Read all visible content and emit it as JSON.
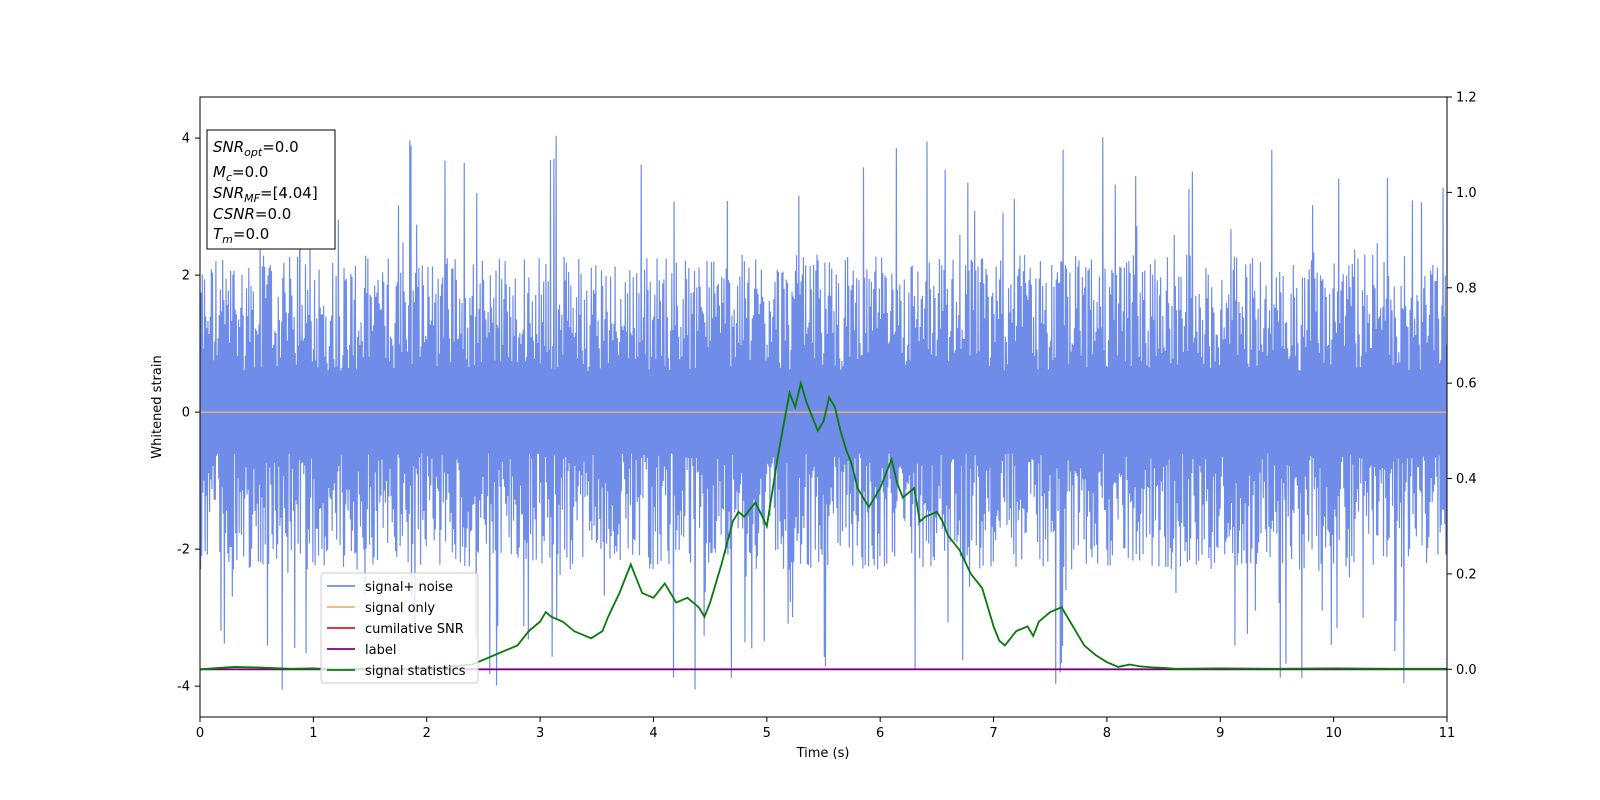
{
  "chart_data": {
    "type": "line",
    "xlabel": "Time (s)",
    "ylabel": "Whitened strain",
    "xlim": [
      0,
      11
    ],
    "ylim": [
      -4.45,
      4.6
    ],
    "y2lim": [
      -0.1,
      1.2
    ],
    "x_ticks": [
      0,
      1,
      2,
      3,
      4,
      5,
      6,
      7,
      8,
      9,
      10,
      11
    ],
    "y_ticks": [
      -4,
      -2,
      0,
      2,
      4
    ],
    "y2_ticks": [
      "0.0",
      "0.2",
      "0.4",
      "0.6",
      "0.8",
      "1.0",
      "1.2"
    ],
    "grid": false,
    "legend_position": "lower-left",
    "legend": [
      "signal+ noise",
      "signal only",
      "cumilative SNR",
      "label",
      "signal statistics"
    ],
    "colors": {
      "signal_noise": "#6f8de8",
      "signal_only": "#f5b36b",
      "cumulative_snr": "#e41a1c",
      "label": "#800080",
      "signal_statistics": "#0a7a0a"
    },
    "annotation": {
      "lines": [
        {
          "base": "SNR",
          "sub": "opt",
          "value": "=0.0"
        },
        {
          "base": "M",
          "sub": "c",
          "value": "=0.0"
        },
        {
          "base": "SNR",
          "sub": "MF",
          "value": "=[4.04]"
        },
        {
          "base": "CSNR",
          "sub": "",
          "value": "=0.0"
        },
        {
          "base": "T",
          "sub": "m",
          "value": "=0.0"
        }
      ]
    },
    "series": [
      {
        "name": "signal+ noise",
        "axis": "left",
        "noise_envelope": {
          "typical_max": 2.0,
          "typical_min": -2.0,
          "peak_max": 4.15,
          "peak_min": -4.05,
          "samples": 2200
        }
      },
      {
        "name": "signal only",
        "axis": "left",
        "x": [
          0,
          11
        ],
        "y": [
          0,
          0
        ]
      },
      {
        "name": "label",
        "axis": "right",
        "x": [
          0,
          11
        ],
        "y": [
          0,
          0
        ]
      },
      {
        "name": "signal statistics",
        "axis": "right",
        "x": [
          0,
          0.3,
          0.5,
          0.8,
          1.0,
          1.2,
          1.5,
          1.8,
          2.0,
          2.2,
          2.4,
          2.6,
          2.7,
          2.8,
          2.9,
          3.0,
          3.05,
          3.1,
          3.2,
          3.3,
          3.4,
          3.45,
          3.55,
          3.6,
          3.7,
          3.8,
          3.9,
          4.0,
          4.1,
          4.2,
          4.3,
          4.4,
          4.45,
          4.5,
          4.6,
          4.7,
          4.75,
          4.8,
          4.9,
          5.0,
          5.1,
          5.2,
          5.25,
          5.3,
          5.35,
          5.4,
          5.45,
          5.5,
          5.55,
          5.6,
          5.65,
          5.7,
          5.75,
          5.8,
          5.9,
          6.0,
          6.1,
          6.15,
          6.2,
          6.3,
          6.35,
          6.4,
          6.5,
          6.55,
          6.6,
          6.7,
          6.8,
          6.9,
          7.0,
          7.05,
          7.1,
          7.2,
          7.3,
          7.35,
          7.4,
          7.5,
          7.6,
          7.7,
          7.8,
          7.9,
          8.0,
          8.1,
          8.2,
          8.3,
          8.4,
          8.5,
          8.6,
          9.0,
          9.5,
          10.0,
          10.5,
          11.0
        ],
        "y": [
          0.0,
          0.005,
          0.004,
          0.001,
          0.002,
          0.0,
          0.001,
          0.0,
          0.002,
          0.005,
          0.01,
          0.03,
          0.04,
          0.05,
          0.08,
          0.1,
          0.12,
          0.11,
          0.1,
          0.08,
          0.07,
          0.065,
          0.08,
          0.11,
          0.16,
          0.22,
          0.16,
          0.15,
          0.18,
          0.14,
          0.15,
          0.13,
          0.11,
          0.14,
          0.22,
          0.31,
          0.33,
          0.32,
          0.35,
          0.3,
          0.45,
          0.58,
          0.55,
          0.6,
          0.56,
          0.53,
          0.5,
          0.52,
          0.57,
          0.55,
          0.5,
          0.46,
          0.43,
          0.38,
          0.34,
          0.38,
          0.44,
          0.39,
          0.36,
          0.38,
          0.31,
          0.32,
          0.33,
          0.31,
          0.28,
          0.25,
          0.2,
          0.17,
          0.09,
          0.06,
          0.05,
          0.08,
          0.09,
          0.07,
          0.1,
          0.12,
          0.13,
          0.09,
          0.05,
          0.03,
          0.015,
          0.005,
          0.01,
          0.006,
          0.004,
          0.003,
          0.001,
          0.002,
          0.001,
          0.002,
          0.001,
          0.001
        ]
      }
    ]
  }
}
